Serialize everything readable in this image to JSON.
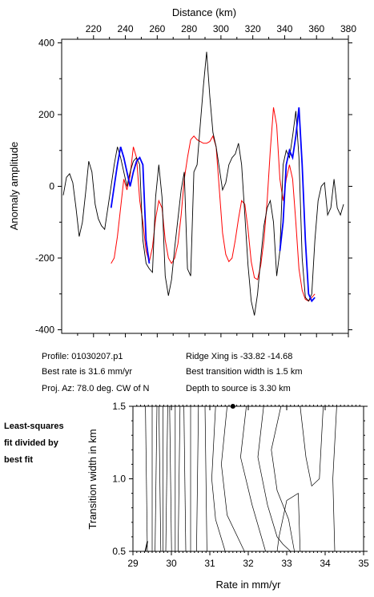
{
  "chart_data": [
    {
      "type": "line",
      "xlabel": "Distance (km)",
      "ylabel": "Anomaly amplitude",
      "xlim": [
        200,
        380
      ],
      "ylim": [
        -410,
        410
      ],
      "x_ticks": [
        220,
        240,
        260,
        280,
        300,
        320,
        340,
        360,
        380
      ],
      "y_ticks": [
        400,
        200,
        0,
        -200,
        -400
      ],
      "grid": false,
      "series": [
        {
          "color": "#000000",
          "x": [
            201,
            203,
            205,
            207,
            209,
            211,
            213,
            215,
            217,
            219,
            221,
            223,
            225,
            227,
            229,
            231,
            233,
            235,
            237,
            239,
            241,
            243,
            245,
            247,
            249,
            251,
            253,
            255,
            257,
            259,
            261,
            263,
            265,
            267,
            269,
            271,
            273,
            275,
            277,
            279,
            281,
            283,
            285,
            287,
            289,
            291,
            293,
            295,
            297,
            299,
            301,
            303,
            305,
            307,
            309,
            311,
            313,
            315,
            317,
            319,
            321,
            323,
            325,
            327,
            329,
            331,
            333,
            335,
            337,
            339,
            341,
            343,
            345,
            347,
            349,
            351,
            353,
            355,
            357,
            359,
            361,
            363,
            365,
            367,
            369,
            371,
            373,
            375,
            377
          ],
          "y": [
            -25,
            25,
            35,
            10,
            -60,
            -140,
            -100,
            -20,
            70,
            40,
            -50,
            -90,
            -110,
            -120,
            -60,
            0,
            60,
            110,
            80,
            40,
            0,
            40,
            70,
            80,
            60,
            -150,
            -215,
            -230,
            -240,
            -30,
            60,
            -30,
            -250,
            -305,
            -260,
            -170,
            -90,
            -10,
            40,
            -230,
            -250,
            40,
            60,
            170,
            280,
            375,
            250,
            150,
            110,
            50,
            -10,
            10,
            60,
            80,
            90,
            120,
            60,
            -80,
            -220,
            -320,
            -360,
            -300,
            -200,
            -110,
            -60,
            -40,
            -100,
            -250,
            -180,
            60,
            100,
            80,
            140,
            210,
            80,
            -200,
            -310,
            -320,
            -300,
            -150,
            -40,
            0,
            10,
            -80,
            -60,
            20,
            -60,
            -80,
            -50
          ]
        },
        {
          "color": "#0000ff",
          "x": [
            231,
            233,
            235,
            237,
            239,
            241,
            243,
            245,
            247,
            249,
            251,
            253,
            255,
            337,
            339,
            341,
            343,
            345,
            347,
            349,
            351,
            353,
            355,
            357,
            359
          ],
          "y": [
            -60,
            0,
            60,
            110,
            80,
            40,
            0,
            40,
            70,
            80,
            60,
            -150,
            -215,
            -180,
            -100,
            60,
            100,
            80,
            140,
            220,
            60,
            -150,
            -300,
            -320,
            -310
          ]
        },
        {
          "color": "#ff0000",
          "x": [
            231,
            233,
            235,
            237,
            239,
            241,
            243,
            245,
            247,
            249,
            251,
            253,
            255,
            257,
            259,
            261,
            263,
            265,
            267,
            269,
            271,
            273,
            275,
            277,
            279,
            281,
            283,
            285,
            287,
            289,
            291,
            293,
            295,
            297,
            299,
            301,
            303,
            305,
            307,
            309,
            311,
            313,
            315,
            317,
            319,
            321,
            323,
            325,
            327,
            329,
            331,
            333,
            335,
            337,
            339,
            341,
            343,
            345,
            347,
            349,
            351,
            353,
            355,
            357,
            359
          ],
          "y": [
            -215,
            -200,
            -140,
            -60,
            20,
            -10,
            30,
            110,
            80,
            -40,
            -100,
            -180,
            -210,
            -170,
            -90,
            -40,
            -60,
            -150,
            -200,
            -215,
            -200,
            -160,
            -80,
            20,
            80,
            130,
            140,
            130,
            125,
            120,
            120,
            125,
            140,
            110,
            -10,
            -130,
            -190,
            -210,
            -200,
            -150,
            -90,
            -40,
            -50,
            -120,
            -210,
            -255,
            -260,
            -220,
            -150,
            -40,
            100,
            220,
            170,
            20,
            -40,
            20,
            60,
            20,
            -100,
            -230,
            -290,
            -315,
            -320,
            -310,
            -300
          ]
        }
      ]
    },
    {
      "type": "contour",
      "xlabel": "Rate in mm/yr",
      "ylabel": "Transition width in km",
      "xlim": [
        29,
        35
      ],
      "ylim": [
        0.5,
        1.5
      ],
      "x_ticks": [
        29,
        30,
        31,
        32,
        33,
        34,
        35
      ],
      "y_ticks": [
        1.5,
        1.0,
        0.5
      ],
      "best_fit_point": {
        "rate": 31.6,
        "width": 1.5
      },
      "note": "Least-squares fit divided by best fit",
      "vertical_contours_at_rate": [
        29.35,
        29.5,
        29.6,
        29.7,
        29.78,
        29.88,
        29.98,
        30.1,
        30.2,
        30.35,
        30.5,
        30.68,
        30.9
      ],
      "curved_contours": [
        {
          "rate": [
            31.15,
            31.05,
            31.15,
            31.4
          ],
          "width": [
            1.5,
            1.0,
            0.72,
            0.5
          ]
        },
        {
          "rate": [
            31.45,
            31.3,
            31.45,
            31.9
          ],
          "width": [
            1.5,
            1.1,
            0.75,
            0.5
          ]
        },
        {
          "rate": [
            31.95,
            31.8,
            32.1,
            32.45
          ],
          "width": [
            1.5,
            1.15,
            0.82,
            0.5
          ]
        },
        {
          "rate": [
            32.4,
            32.25,
            32.5,
            32.75,
            32.9,
            33.1
          ],
          "width": [
            1.5,
            1.15,
            0.82,
            0.6,
            0.55,
            0.5
          ]
        },
        {
          "rate": [
            32.85,
            32.6,
            32.75,
            33.05,
            33.2
          ],
          "width": [
            1.5,
            1.2,
            0.92,
            0.72,
            0.5
          ]
        },
        {
          "rate": [
            32.75,
            32.8,
            33.0,
            33.3,
            33.35
          ],
          "width": [
            0.5,
            0.6,
            0.85,
            0.9,
            0.5
          ]
        },
        {
          "rate": [
            33.35,
            33.5,
            33.65,
            33.85,
            33.95
          ],
          "width": [
            1.5,
            1.15,
            0.95,
            1.0,
            1.5
          ]
        },
        {
          "rate": [
            34.3,
            34.2,
            34.25
          ],
          "width": [
            1.5,
            1.0,
            0.5
          ]
        }
      ]
    }
  ],
  "info": {
    "profile": "Profile: 01030207.p1",
    "best_rate": "Best rate is 31.6 mm/yr",
    "proj_az": "Proj. Az: 78.0 deg. CW of N",
    "ridge_xing": "Ridge Xing is -33.82 -14.68",
    "best_transition": "Best transition width is 1.5 km",
    "depth": "Depth to source is   3.30 km"
  },
  "side_label": {
    "line1": "Least-squares",
    "line2": "fit divided by",
    "line3": "best fit"
  },
  "top_axis": {
    "label": "Distance (km)",
    "ticks": [
      "220",
      "240",
      "260",
      "280",
      "300",
      "320",
      "340",
      "360",
      "380"
    ]
  },
  "left_axis": {
    "label": "Anomaly amplitude",
    "ticks": [
      "400",
      "200",
      "0",
      "-200",
      "-400"
    ]
  },
  "bottom_axis": {
    "label": "Rate in mm/yr",
    "ticks": [
      "29",
      "30",
      "31",
      "32",
      "33",
      "34",
      "35"
    ]
  },
  "contour_left_axis": {
    "label": "Transition width in km",
    "ticks": [
      "1.5",
      "1.0",
      "0.5"
    ]
  }
}
